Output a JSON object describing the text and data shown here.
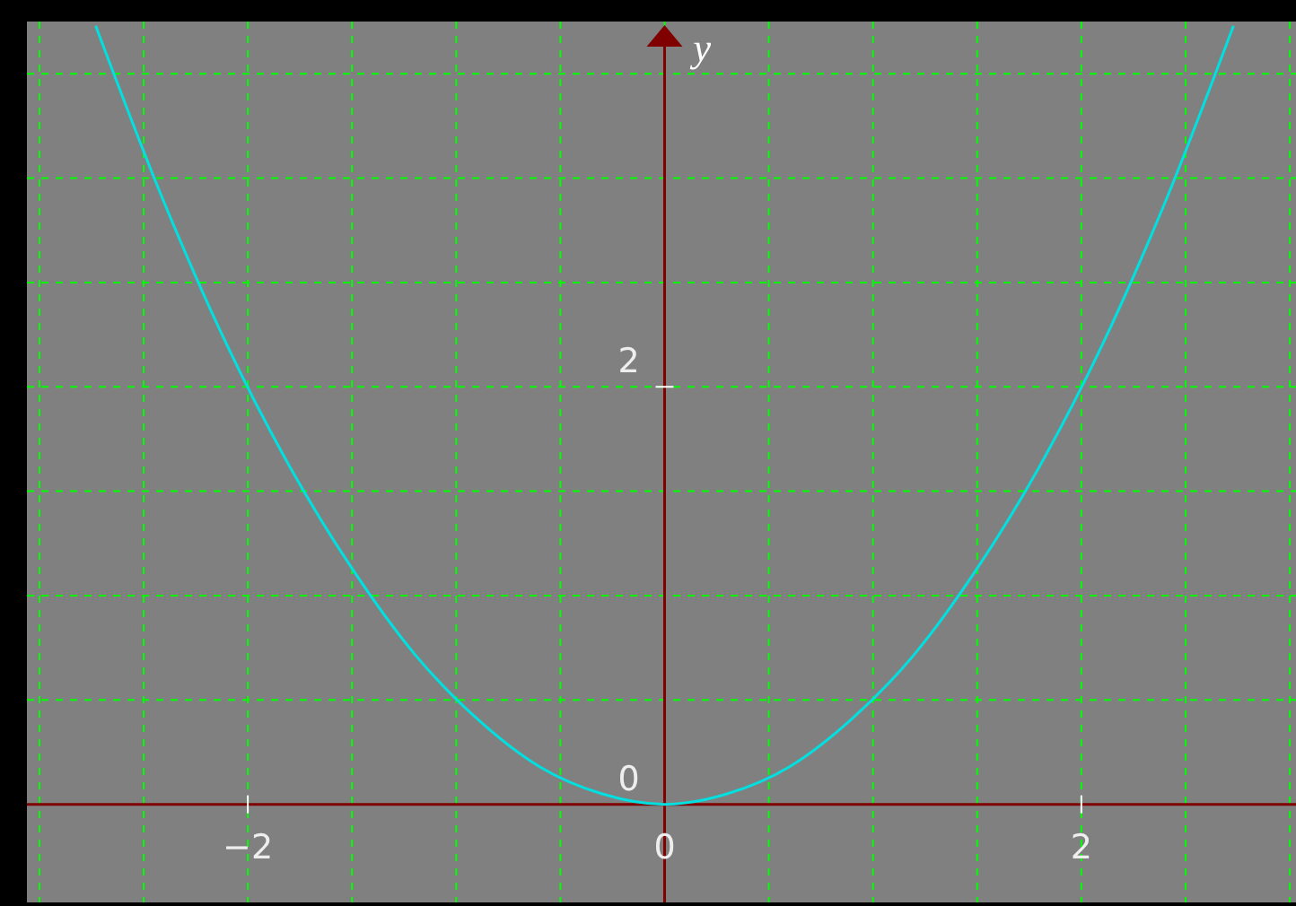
{
  "chart_data": {
    "type": "line",
    "ylabel": "y",
    "x": [
      -2.73,
      -2.4,
      -2.1,
      -1.8,
      -1.5,
      -1.2,
      -0.9,
      -0.6,
      -0.3,
      0,
      0.3,
      0.6,
      0.9,
      1.2,
      1.5,
      1.8,
      2.1,
      2.4,
      2.73
    ],
    "series": [
      {
        "color": "#00e0e0",
        "values": [
          3.73,
          2.88,
          2.2,
          1.62,
          1.13,
          0.72,
          0.41,
          0.18,
          0.05,
          0,
          0.05,
          0.18,
          0.41,
          0.72,
          1.13,
          1.62,
          2.2,
          2.88,
          3.73
        ]
      }
    ],
    "xlim": [
      -3.06,
      3.03
    ],
    "ylim": [
      -0.47,
      3.75
    ],
    "xticks": [
      {
        "value": -3,
        "label": null
      },
      {
        "value": -2.5,
        "label": null
      },
      {
        "value": -2,
        "label": "−2"
      },
      {
        "value": -1.5,
        "label": null
      },
      {
        "value": -1,
        "label": null
      },
      {
        "value": -0.5,
        "label": null
      },
      0,
      {
        "value": 0.5,
        "label": null
      },
      {
        "value": 1,
        "label": null
      },
      {
        "value": 1.5,
        "label": null
      },
      2,
      {
        "value": 2.5,
        "label": null
      },
      {
        "value": 3,
        "label": null
      }
    ],
    "yticks": [
      0,
      {
        "value": 0.5,
        "label": null
      },
      {
        "value": 1,
        "label": null
      },
      {
        "value": 1.5,
        "label": null
      },
      2,
      {
        "value": 2.5,
        "label": null
      },
      {
        "value": 3,
        "label": null
      },
      {
        "value": 3.5,
        "label": null
      }
    ],
    "grid": true,
    "marker": "none",
    "line_style": "solid"
  }
}
